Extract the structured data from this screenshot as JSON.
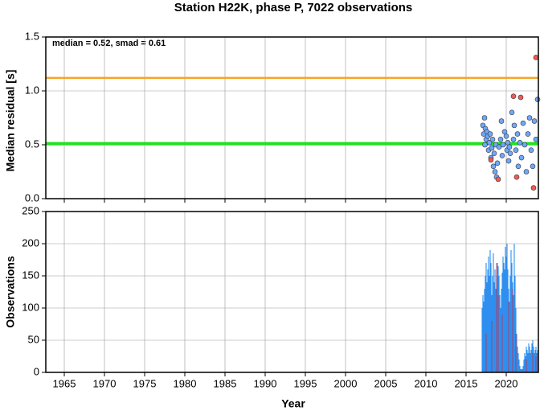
{
  "chart_data": [
    {
      "type": "scatter",
      "title": "Station H22K, phase P, 7022 observations",
      "annotation": "median = 0.52, smad = 0.61",
      "ylabel": "Median residual [s]",
      "xlim": [
        1962.7,
        2024
      ],
      "ylim": [
        0,
        1.5
      ],
      "grid": true,
      "xticks": [
        1965,
        1970,
        1975,
        1980,
        1985,
        1990,
        1995,
        2000,
        2005,
        2010,
        2015,
        2020
      ],
      "yticks": [
        {
          "value": 0,
          "label": "0.0"
        },
        {
          "value": 0.5,
          "label": "0.5"
        },
        {
          "value": 1,
          "label": "1.0"
        },
        {
          "value": 1.5,
          "label": "1.5"
        }
      ],
      "hlines": [
        {
          "value": 0.51,
          "color": "#22e022"
        },
        {
          "value": 1.12,
          "color": "#f5a623"
        }
      ],
      "series": [
        {
          "color": "#6fa8f5",
          "x": [
            2017.1,
            2017.2,
            2017.3,
            2017.35,
            2017.4,
            2017.5,
            2017.6,
            2017.7,
            2017.8,
            2017.9,
            2018.0,
            2018.1,
            2018.2,
            2018.3,
            2018.4,
            2018.5,
            2018.6,
            2018.7,
            2018.8,
            2018.9,
            2019.1,
            2019.3,
            2019.4,
            2019.5,
            2019.6,
            2019.8,
            2020.0,
            2020.1,
            2020.2,
            2020.3,
            2020.4,
            2020.5,
            2020.7,
            2020.9,
            2021.0,
            2021.2,
            2021.4,
            2021.5,
            2021.7,
            2021.9,
            2022.1,
            2022.3,
            2022.5,
            2022.7,
            2022.9,
            2023.1,
            2023.3,
            2023.5,
            2023.7,
            2023.9
          ],
          "values": [
            0.68,
            0.6,
            0.75,
            0.5,
            0.65,
            0.55,
            0.62,
            0.58,
            0.45,
            0.52,
            0.6,
            0.38,
            0.47,
            0.55,
            0.3,
            0.42,
            0.25,
            0.5,
            0.2,
            0.33,
            0.48,
            0.55,
            0.72,
            0.4,
            0.5,
            0.62,
            0.58,
            0.45,
            0.52,
            0.35,
            0.48,
            0.42,
            0.8,
            0.55,
            0.68,
            0.45,
            0.6,
            0.3,
            0.52,
            0.38,
            0.7,
            0.5,
            0.25,
            0.6,
            0.75,
            0.45,
            0.3,
            0.72,
            0.55,
            0.92
          ]
        },
        {
          "color": "#f25a50",
          "x": [
            2018.1,
            2019.0,
            2020.9,
            2021.3,
            2021.8,
            2023.4,
            2023.7
          ],
          "values": [
            0.36,
            0.18,
            0.95,
            0.2,
            0.94,
            0.1,
            1.31
          ]
        }
      ]
    },
    {
      "type": "bar",
      "ylabel": "Observations",
      "xlabel": "Year",
      "xlim": [
        1962.7,
        2024
      ],
      "ylim": [
        0,
        250
      ],
      "grid": true,
      "xticks": [
        1965,
        1970,
        1975,
        1980,
        1985,
        1990,
        1995,
        2000,
        2005,
        2010,
        2015,
        2020
      ],
      "yticks": [
        0,
        50,
        100,
        150,
        200,
        250
      ],
      "series": [
        {
          "color": "#2f8ff0",
          "x": [
            2017.0,
            2017.1,
            2017.2,
            2017.3,
            2017.4,
            2017.5,
            2017.6,
            2017.7,
            2017.8,
            2017.9,
            2018.0,
            2018.1,
            2018.2,
            2018.3,
            2018.4,
            2018.5,
            2018.6,
            2018.7,
            2018.8,
            2018.9,
            2019.0,
            2019.1,
            2019.2,
            2019.3,
            2019.4,
            2019.5,
            2019.6,
            2019.7,
            2019.8,
            2019.9,
            2020.0,
            2020.1,
            2020.2,
            2020.3,
            2020.4,
            2020.5,
            2020.6,
            2020.7,
            2020.8,
            2020.9,
            2021.0,
            2021.1,
            2021.2,
            2021.3,
            2021.4,
            2021.5,
            2021.6,
            2021.7,
            2021.8,
            2021.9,
            2022.0,
            2022.1,
            2022.2,
            2022.3,
            2022.4,
            2022.5,
            2022.6,
            2022.7,
            2022.8,
            2022.9,
            2023.0,
            2023.1,
            2023.2,
            2023.3,
            2023.4,
            2023.5,
            2023.6,
            2023.7,
            2023.8,
            2023.9
          ],
          "values": [
            100,
            120,
            110,
            130,
            150,
            170,
            140,
            160,
            180,
            150,
            190,
            170,
            120,
            150,
            185,
            140,
            160,
            130,
            150,
            170,
            165,
            150,
            120,
            100,
            130,
            155,
            180,
            170,
            160,
            195,
            180,
            200,
            160,
            130,
            110,
            150,
            190,
            170,
            140,
            120,
            200,
            150,
            100,
            60,
            40,
            30,
            20,
            10,
            5,
            5,
            5,
            10,
            20,
            30,
            25,
            40,
            35,
            30,
            45,
            40,
            30,
            35,
            45,
            50,
            40,
            30,
            35,
            40,
            30,
            35
          ]
        },
        {
          "color": "#c0304a",
          "x": [
            2017.5,
            2018.2,
            2018.8,
            2019.0,
            2019.5,
            2020.3,
            2020.8,
            2021.2,
            2022.5,
            2023.3,
            2023.7
          ],
          "values": [
            60,
            80,
            170,
            120,
            90,
            110,
            130,
            60,
            20,
            30,
            25
          ]
        }
      ]
    }
  ]
}
